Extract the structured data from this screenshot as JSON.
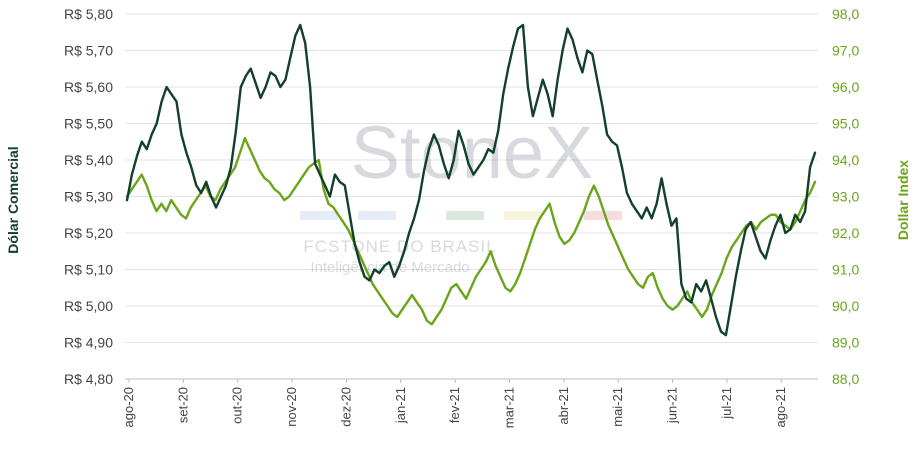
{
  "chart_data": {
    "type": "line",
    "title": "",
    "watermark": {
      "brand": "StoneX",
      "line1": "FCStone do Brasil",
      "line2": "Inteligência de Mercado"
    },
    "x_labels": [
      "ago-20",
      "set-20",
      "out-20",
      "nov-20",
      "dez-20",
      "jan-21",
      "fev-21",
      "mar-21",
      "abr-21",
      "mai-21",
      "jun-21",
      "jul-21",
      "ago-21"
    ],
    "y_left": {
      "label": "Dólar Comercial",
      "range": [
        4.8,
        5.8
      ],
      "ticks": [
        5.8,
        5.7,
        5.6,
        5.5,
        5.4,
        5.3,
        5.2,
        5.1,
        5.0,
        4.9,
        4.8
      ],
      "tick_labels": [
        "R$ 5,80",
        "R$ 5,70",
        "R$ 5,60",
        "R$ 5,50",
        "R$ 5,40",
        "R$ 5,30",
        "R$ 5,20",
        "R$ 5,10",
        "R$ 5,00",
        "R$ 4,90",
        "R$ 4,80"
      ],
      "color": "#13402a"
    },
    "y_right": {
      "label": "Dollar Index",
      "range": [
        88.0,
        98.0
      ],
      "ticks": [
        98.0,
        97.0,
        96.0,
        95.0,
        94.0,
        93.0,
        92.0,
        91.0,
        90.0,
        89.0,
        88.0
      ],
      "tick_labels": [
        "98,0",
        "97,0",
        "96,0",
        "95,0",
        "94,0",
        "93,0",
        "92,0",
        "91,0",
        "90,0",
        "89,0",
        "88,0"
      ],
      "color": "#6aa51c"
    },
    "grid": true,
    "series": [
      {
        "name": "Dólar Comercial",
        "axis": "left",
        "color": "#13402a",
        "values": [
          5.29,
          5.36,
          5.41,
          5.45,
          5.43,
          5.47,
          5.5,
          5.56,
          5.6,
          5.58,
          5.56,
          5.47,
          5.42,
          5.38,
          5.33,
          5.31,
          5.34,
          5.3,
          5.27,
          5.3,
          5.33,
          5.38,
          5.48,
          5.6,
          5.63,
          5.65,
          5.61,
          5.57,
          5.6,
          5.64,
          5.63,
          5.6,
          5.62,
          5.68,
          5.74,
          5.77,
          5.72,
          5.6,
          5.39,
          5.36,
          5.33,
          5.3,
          5.36,
          5.34,
          5.33,
          5.25,
          5.17,
          5.12,
          5.08,
          5.07,
          5.1,
          5.09,
          5.11,
          5.12,
          5.08,
          5.11,
          5.15,
          5.2,
          5.24,
          5.29,
          5.37,
          5.43,
          5.47,
          5.44,
          5.39,
          5.35,
          5.4,
          5.48,
          5.44,
          5.39,
          5.36,
          5.38,
          5.4,
          5.43,
          5.42,
          5.48,
          5.58,
          5.65,
          5.71,
          5.76,
          5.77,
          5.6,
          5.52,
          5.57,
          5.62,
          5.58,
          5.52,
          5.62,
          5.7,
          5.76,
          5.73,
          5.68,
          5.64,
          5.7,
          5.69,
          5.62,
          5.55,
          5.47,
          5.45,
          5.44,
          5.38,
          5.31,
          5.28,
          5.26,
          5.24,
          5.27,
          5.24,
          5.28,
          5.35,
          5.28,
          5.22,
          5.24,
          5.06,
          5.02,
          5.01,
          5.06,
          5.04,
          5.07,
          5.02,
          4.97,
          4.93,
          4.92,
          5.0,
          5.08,
          5.15,
          5.21,
          5.23,
          5.19,
          5.15,
          5.13,
          5.18,
          5.22,
          5.25,
          5.2,
          5.21,
          5.25,
          5.23,
          5.26,
          5.38,
          5.42
        ]
      },
      {
        "name": "Dollar Index",
        "axis": "right",
        "color": "#6aa51c",
        "values": [
          93.0,
          93.2,
          93.4,
          93.6,
          93.3,
          92.9,
          92.6,
          92.8,
          92.6,
          92.9,
          92.7,
          92.5,
          92.4,
          92.7,
          92.9,
          93.1,
          93.3,
          93.0,
          92.9,
          93.2,
          93.4,
          93.6,
          93.8,
          94.2,
          94.6,
          94.3,
          94.0,
          93.7,
          93.5,
          93.4,
          93.2,
          93.1,
          92.9,
          93.0,
          93.2,
          93.4,
          93.6,
          93.8,
          93.9,
          94.0,
          93.2,
          92.8,
          92.7,
          92.5,
          92.3,
          92.1,
          91.8,
          91.5,
          91.2,
          90.9,
          90.6,
          90.4,
          90.2,
          90.0,
          89.8,
          89.7,
          89.9,
          90.1,
          90.3,
          90.1,
          89.9,
          89.6,
          89.5,
          89.7,
          89.9,
          90.2,
          90.5,
          90.6,
          90.4,
          90.2,
          90.5,
          90.8,
          91.0,
          91.2,
          91.5,
          91.1,
          90.8,
          90.5,
          90.4,
          90.6,
          90.9,
          91.3,
          91.7,
          92.1,
          92.4,
          92.6,
          92.8,
          92.3,
          91.9,
          91.7,
          91.8,
          92.0,
          92.3,
          92.6,
          93.0,
          93.3,
          93.0,
          92.6,
          92.2,
          91.9,
          91.6,
          91.3,
          91.0,
          90.8,
          90.6,
          90.5,
          90.8,
          90.9,
          90.5,
          90.2,
          90.0,
          89.9,
          90.0,
          90.2,
          90.4,
          90.1,
          89.9,
          89.7,
          89.9,
          90.3,
          90.6,
          90.9,
          91.3,
          91.6,
          91.8,
          92.0,
          92.2,
          92.3,
          92.1,
          92.3,
          92.4,
          92.5,
          92.5,
          92.3,
          92.2,
          92.1,
          92.3,
          92.6,
          92.9,
          93.1,
          93.4
        ]
      }
    ]
  }
}
